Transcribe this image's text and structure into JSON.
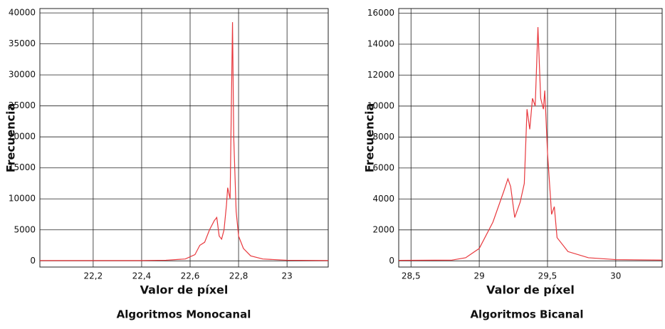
{
  "chart_data": [
    {
      "type": "line",
      "caption": "Algoritmos Monocanal",
      "x_label": "Valor de píxel",
      "y_label": "Frecuencia",
      "grid": true,
      "xlim": [
        21.98,
        23.17
      ],
      "ylim": [
        -1000,
        40700
      ],
      "xticks": [
        {
          "value": 22.2,
          "label": "22,2"
        },
        {
          "value": 22.4,
          "label": "22,4"
        },
        {
          "value": 22.6,
          "label": "22,6"
        },
        {
          "value": 22.8,
          "label": "22,8"
        },
        23
      ],
      "yticks": [
        0,
        5000,
        10000,
        15000,
        20000,
        25000,
        30000,
        35000,
        40000
      ],
      "series": [
        {
          "color": "#e8383d",
          "x": [
            21.98,
            22.4,
            22.5,
            22.58,
            22.62,
            22.64,
            22.66,
            22.68,
            22.7,
            22.71,
            22.72,
            22.73,
            22.74,
            22.75,
            22.755,
            22.765,
            22.775,
            22.78,
            22.79,
            22.8,
            22.82,
            22.85,
            22.9,
            23.0,
            23.17
          ],
          "values": [
            50,
            50,
            100,
            300,
            1000,
            2500,
            3000,
            5000,
            6500,
            7000,
            4000,
            3500,
            5000,
            9000,
            11800,
            10000,
            38500,
            20000,
            8000,
            4000,
            2000,
            800,
            300,
            100,
            50
          ]
        }
      ]
    },
    {
      "type": "line",
      "caption": "Algoritmos Bicanal",
      "x_label": "Valor de píxel",
      "y_label": "Frecuencia",
      "grid": true,
      "xlim": [
        28.41,
        30.34
      ],
      "ylim": [
        -400,
        16300
      ],
      "xticks": [
        {
          "value": 28.5,
          "label": "28,5"
        },
        29,
        {
          "value": 29.5,
          "label": "29,5"
        },
        30
      ],
      "yticks": [
        0,
        2000,
        4000,
        6000,
        8000,
        10000,
        12000,
        14000,
        16000
      ],
      "series": [
        {
          "color": "#e8383d",
          "x": [
            28.41,
            28.8,
            28.9,
            29.0,
            29.1,
            29.18,
            29.21,
            29.23,
            29.26,
            29.3,
            29.33,
            29.35,
            29.37,
            29.39,
            29.41,
            29.43,
            29.45,
            29.47,
            29.48,
            29.5,
            29.53,
            29.55,
            29.57,
            29.65,
            29.8,
            30.0,
            30.34
          ],
          "values": [
            30,
            50,
            200,
            800,
            2500,
            4500,
            5300,
            4800,
            2800,
            3800,
            5000,
            9800,
            8500,
            10500,
            10000,
            15100,
            10500,
            9800,
            11000,
            7000,
            3000,
            3500,
            1500,
            600,
            200,
            80,
            50
          ]
        }
      ]
    }
  ]
}
